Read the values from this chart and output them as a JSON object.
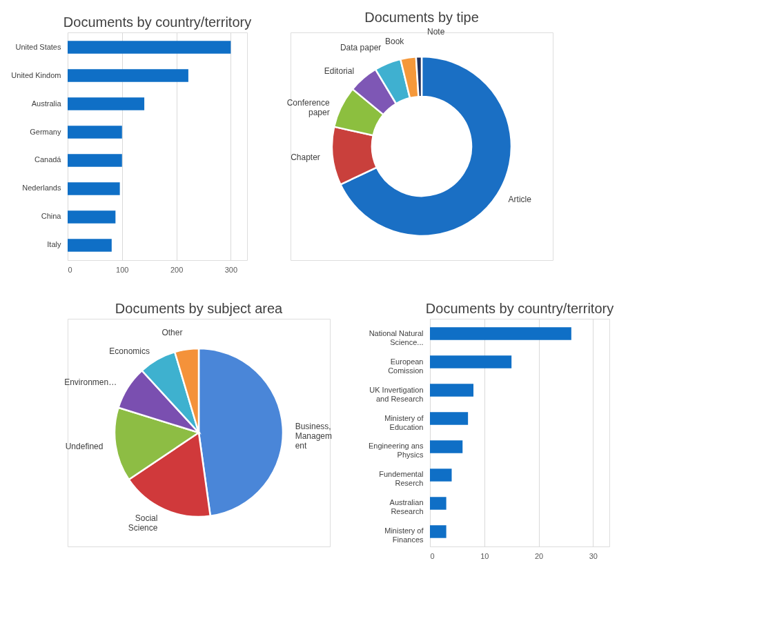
{
  "chart_data": [
    {
      "type": "bar",
      "orientation": "horizontal",
      "title": "Documents by country/territory",
      "categories": [
        "United States",
        "United Kindom",
        "Australia",
        "Germany",
        "Canadá",
        "Nederlands",
        "China",
        "Italy"
      ],
      "values": [
        300,
        222,
        141,
        100,
        100,
        96,
        88,
        81
      ],
      "color": "#0f6fc6",
      "xlim": [
        0,
        330
      ],
      "xticks": [
        0,
        100,
        200,
        300
      ],
      "grid": "x"
    },
    {
      "type": "donut",
      "title": "Documents by tipe",
      "categories": [
        "Article",
        "Chapter",
        "Conference\npaper",
        "Editorial",
        "Data paper",
        "Book",
        "Note"
      ],
      "values": [
        68,
        10.5,
        7.5,
        5.4,
        4.8,
        2.8,
        1
      ],
      "colors": [
        "#1a6fc4",
        "#c9403c",
        "#8cbf3f",
        "#7e57b5",
        "#3fb0d0",
        "#f5983a",
        "#1f2f5a"
      ]
    },
    {
      "type": "pie",
      "title": "Documents by subject area",
      "categories": [
        "Business,\nManagem\nent",
        "Social\nScience",
        "Undefined",
        "Environmen…",
        "Economics",
        "Other"
      ],
      "values": [
        47.8,
        17.8,
        14.2,
        8.4,
        7.2,
        4.6
      ],
      "colors": [
        "#4a86d8",
        "#d0393b",
        "#8dbd44",
        "#7a4fb0",
        "#3eb1cf",
        "#f4923a"
      ]
    },
    {
      "type": "bar",
      "orientation": "horizontal",
      "title": "Documents by country/territory",
      "categories": [
        "National Natural\nScience...",
        "European\nComission",
        "UK Invertigation\nand Research",
        "Ministery of\nEducation",
        "Engineering ans\nPhysics",
        "Fundemental\nReserch",
        "Australian\nResearch",
        "Ministery of\nFinances"
      ],
      "values": [
        26,
        15,
        8,
        7,
        6,
        4,
        3,
        3
      ],
      "color": "#0f6fc6",
      "xlim": [
        0,
        33
      ],
      "xticks": [
        0,
        10,
        20,
        30
      ],
      "grid": "x"
    }
  ]
}
